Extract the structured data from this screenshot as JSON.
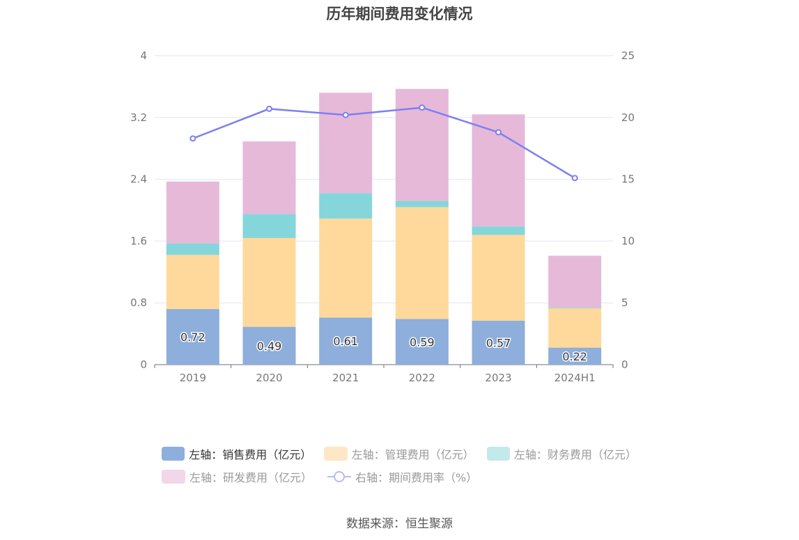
{
  "chart_data": {
    "type": "bar",
    "title": "历年期间费用变化情况",
    "categories": [
      "2019",
      "2020",
      "2021",
      "2022",
      "2023",
      "2024H1"
    ],
    "left_axis": {
      "ylim": [
        0,
        4
      ],
      "ticks": [
        "0",
        "0.8",
        "1.6",
        "2.4",
        "3.2",
        "4"
      ]
    },
    "right_axis": {
      "ylim": [
        0,
        25
      ],
      "ticks": [
        "0",
        "5",
        "10",
        "15",
        "20",
        "25"
      ]
    },
    "series": [
      {
        "name": "左轴：销售费用（亿元）",
        "type": "bar",
        "stack": "total",
        "color": "#8eaedc",
        "values": [
          0.72,
          0.49,
          0.61,
          0.59,
          0.57,
          0.22
        ],
        "labels": [
          "0.72",
          "0.49",
          "0.61",
          "0.59",
          "0.57",
          "0.22"
        ]
      },
      {
        "name": "左轴：管理费用（亿元）",
        "type": "bar",
        "stack": "total",
        "color": "#ffd99b",
        "values": [
          0.7,
          1.15,
          1.28,
          1.45,
          1.11,
          0.51
        ]
      },
      {
        "name": "左轴：财务费用（亿元）",
        "type": "bar",
        "stack": "total",
        "color": "#85d6da",
        "values": [
          0.15,
          0.31,
          0.33,
          0.08,
          0.11,
          0.01
        ]
      },
      {
        "name": "左轴：研发费用（亿元）",
        "type": "bar",
        "stack": "total",
        "color": "#e6b9d9",
        "values": [
          0.8,
          0.94,
          1.3,
          1.45,
          1.45,
          0.67
        ]
      },
      {
        "name": "右轴：期间费用率（%）",
        "type": "line",
        "axis": "right",
        "color": "#7b7ff0",
        "values": [
          18.3,
          20.7,
          20.2,
          20.8,
          18.8,
          15.1
        ]
      }
    ]
  },
  "legend": {
    "row1": [
      "左轴：销售费用（亿元）",
      "左轴：管理费用（亿元）",
      "左轴：财务费用（亿元）"
    ],
    "row2": [
      "左轴：研发费用（亿元）",
      "右轴：期间费用率（%）"
    ],
    "colors": [
      "#8eaedc",
      "#fde7c5",
      "#c3e9eb",
      "#f2d6ea"
    ]
  },
  "source": "数据来源：恒生聚源"
}
